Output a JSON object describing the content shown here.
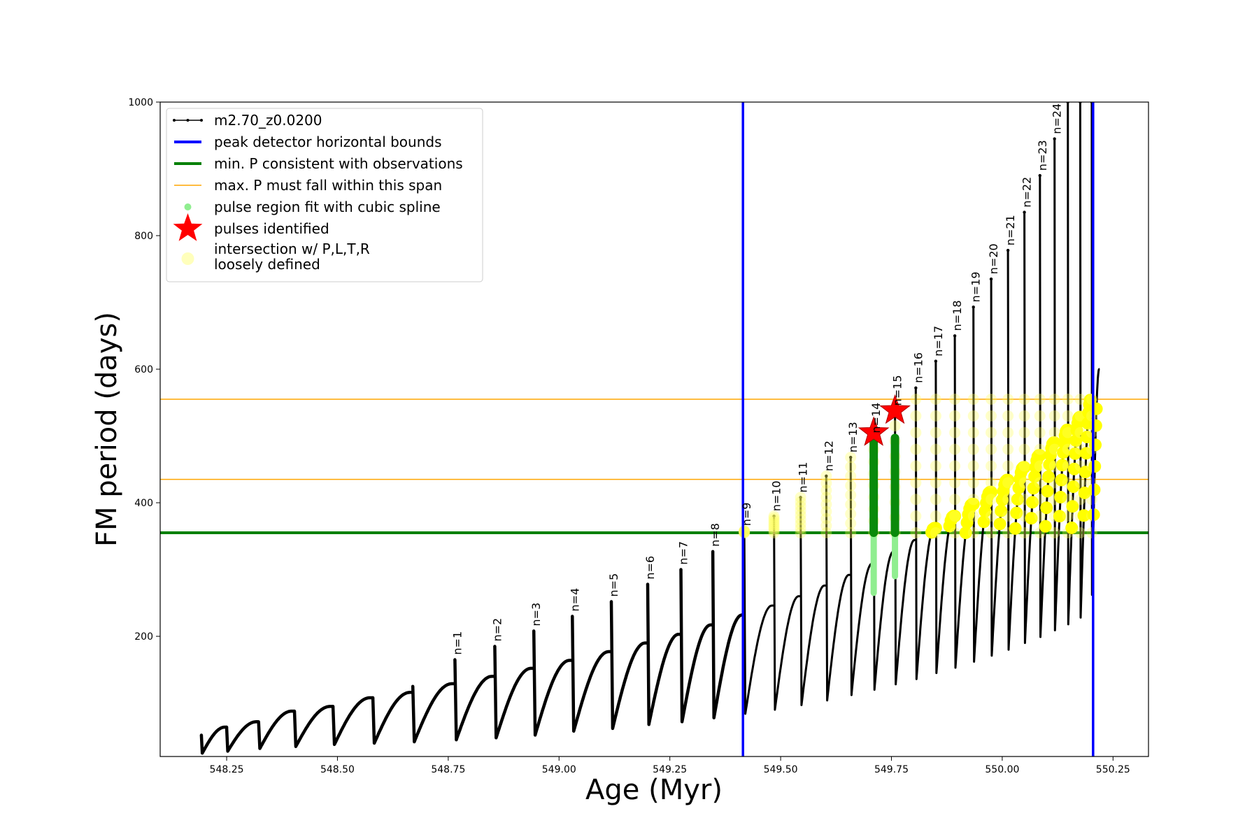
{
  "chart_data": {
    "type": "line",
    "xlabel": "Age (Myr)",
    "ylabel": "FM period (days)",
    "xlim": [
      548.1,
      550.33
    ],
    "ylim": [
      20,
      1000
    ],
    "xticks": [
      548.25,
      548.5,
      548.75,
      549.0,
      549.25,
      549.5,
      549.75,
      550.0,
      550.25
    ],
    "xtick_labels": [
      "548.25",
      "548.50",
      "548.75",
      "549.00",
      "549.25",
      "549.50",
      "549.75",
      "550.00",
      "550.25"
    ],
    "yticks": [
      200,
      400,
      600,
      800,
      1000
    ],
    "ytick_labels": [
      "200",
      "400",
      "600",
      "800",
      "1000"
    ],
    "grid": false,
    "legend_position": "top-left",
    "legend": [
      {
        "label": "m2.70_z0.0200",
        "kind": "line-marker",
        "color": "#000000"
      },
      {
        "label": "peak detector horizontal bounds",
        "kind": "line",
        "color": "#0000ff"
      },
      {
        "label": "min. P consistent with observations",
        "kind": "line",
        "color": "#008000"
      },
      {
        "label": "max. P must fall within this span",
        "kind": "thin-line",
        "color": "#ffa500"
      },
      {
        "label": "pulse region fit with cubic spline",
        "kind": "dot",
        "color": "#90ee90"
      },
      {
        "label": "pulses identified",
        "kind": "star",
        "color": "#ff0000"
      },
      {
        "label": "intersection w/ P,L,T,R",
        "label2": "loosely defined",
        "kind": "big-dot",
        "color": "#ffffa0"
      }
    ],
    "series_name": "m2.70_z0.0200",
    "vertical_lines": [
      549.415,
      550.205
    ],
    "min_period_line": 355,
    "max_period_span": [
      435,
      555
    ],
    "pulses": [
      {
        "age": 548.193,
        "start": 52,
        "low": 25,
        "end": 64
      },
      {
        "age": 548.25,
        "start": 64,
        "low": 28,
        "end": 72
      },
      {
        "age": 548.322,
        "start": 72,
        "low": 32,
        "end": 88
      },
      {
        "age": 548.403,
        "start": 88,
        "low": 35,
        "end": 95
      },
      {
        "age": 548.49,
        "start": 95,
        "low": 38,
        "end": 108
      },
      {
        "age": 548.58,
        "start": 108,
        "low": 40,
        "end": 116
      },
      {
        "age": 548.67,
        "start": 125,
        "low": 42,
        "end": 129
      },
      {
        "age": 548.765,
        "start": 165,
        "low": 45,
        "end": 140
      },
      {
        "age": 548.855,
        "start": 185,
        "low": 48,
        "end": 152
      },
      {
        "age": 548.943,
        "start": 208,
        "low": 52,
        "end": 164
      },
      {
        "age": 549.03,
        "start": 230,
        "low": 58,
        "end": 177
      },
      {
        "age": 549.118,
        "start": 252,
        "low": 62,
        "end": 190
      },
      {
        "age": 549.2,
        "start": 278,
        "low": 68,
        "end": 203
      },
      {
        "age": 549.275,
        "start": 300,
        "low": 72,
        "end": 217
      },
      {
        "age": 549.347,
        "start": 327,
        "low": 78,
        "end": 232
      },
      {
        "age": 549.418,
        "start": 358,
        "low": 84,
        "end": 246
      },
      {
        "age": 549.485,
        "start": 380,
        "low": 90,
        "end": 260
      },
      {
        "age": 549.545,
        "start": 408,
        "low": 97,
        "end": 276
      },
      {
        "age": 549.603,
        "start": 440,
        "low": 104,
        "end": 292
      },
      {
        "age": 549.658,
        "start": 468,
        "low": 112,
        "end": 309
      },
      {
        "age": 549.71,
        "start": 497,
        "low": 120,
        "end": 327
      },
      {
        "age": 549.758,
        "start": 538,
        "low": 128,
        "end": 344
      },
      {
        "age": 549.805,
        "start": 572,
        "low": 136,
        "end": 362
      },
      {
        "age": 549.85,
        "start": 612,
        "low": 145,
        "end": 380
      },
      {
        "age": 549.893,
        "start": 650,
        "low": 153,
        "end": 398
      },
      {
        "age": 549.935,
        "start": 693,
        "low": 162,
        "end": 416
      },
      {
        "age": 549.975,
        "start": 735,
        "low": 171,
        "end": 434
      },
      {
        "age": 550.013,
        "start": 778,
        "low": 180,
        "end": 453
      },
      {
        "age": 550.05,
        "start": 835,
        "low": 190,
        "end": 471
      },
      {
        "age": 550.085,
        "start": 890,
        "low": 199,
        "end": 490
      },
      {
        "age": 550.118,
        "start": 945,
        "low": 209,
        "end": 509
      },
      {
        "age": 550.148,
        "start": 1000,
        "low": 218,
        "end": 528
      },
      {
        "age": 550.176,
        "start": 1000,
        "low": 228,
        "end": 556
      },
      {
        "age": 550.202,
        "start": 1000,
        "low": 262,
        "end": 600
      }
    ],
    "pulse_labels": [
      {
        "text": "n=1",
        "age": 548.765,
        "period": 168
      },
      {
        "text": "n=2",
        "age": 548.855,
        "period": 188
      },
      {
        "text": "n=3",
        "age": 548.943,
        "period": 211
      },
      {
        "text": "n=4",
        "age": 549.03,
        "period": 233
      },
      {
        "text": "n=5",
        "age": 549.118,
        "period": 255
      },
      {
        "text": "n=6",
        "age": 549.2,
        "period": 281
      },
      {
        "text": "n=7",
        "age": 549.275,
        "period": 303
      },
      {
        "text": "n=8",
        "age": 549.347,
        "period": 330
      },
      {
        "text": "n=9",
        "age": 549.418,
        "period": 361
      },
      {
        "text": "n=10",
        "age": 549.485,
        "period": 383
      },
      {
        "text": "n=11",
        "age": 549.545,
        "period": 411
      },
      {
        "text": "n=12",
        "age": 549.603,
        "period": 443
      },
      {
        "text": "n=13",
        "age": 549.658,
        "period": 471
      },
      {
        "text": "n=14",
        "age": 549.71,
        "period": 500
      },
      {
        "text": "n=15",
        "age": 549.758,
        "period": 541
      },
      {
        "text": "n=16",
        "age": 549.805,
        "period": 575
      },
      {
        "text": "n=17",
        "age": 549.85,
        "period": 615
      },
      {
        "text": "n=18",
        "age": 549.893,
        "period": 653
      },
      {
        "text": "n=19",
        "age": 549.935,
        "period": 696
      },
      {
        "text": "n=20",
        "age": 549.975,
        "period": 738
      },
      {
        "text": "n=21",
        "age": 550.013,
        "period": 781
      },
      {
        "text": "n=22",
        "age": 550.05,
        "period": 838
      },
      {
        "text": "n=23",
        "age": 550.085,
        "period": 893
      },
      {
        "text": "n=24",
        "age": 550.118,
        "period": 948
      }
    ],
    "spline_regions": [
      {
        "age": 549.71,
        "from": 265,
        "to": 497
      },
      {
        "age": 549.758,
        "from": 290,
        "to": 497
      }
    ],
    "pulses_identified": [
      {
        "age": 549.71,
        "period": 505
      },
      {
        "age": 549.758,
        "period": 538
      }
    ]
  }
}
